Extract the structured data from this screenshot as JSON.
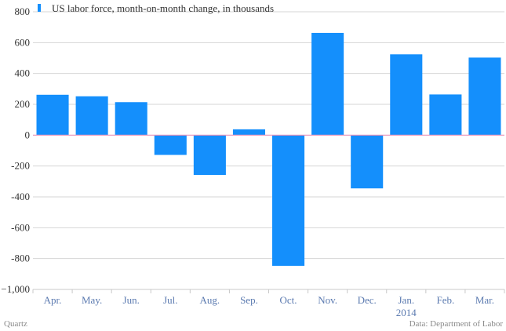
{
  "chart_data": {
    "type": "bar",
    "title": "",
    "xlabel": "",
    "ylabel": "",
    "ylim": [
      -1000,
      800
    ],
    "yticks": [
      800,
      600,
      400,
      200,
      0,
      -200,
      -400,
      -600,
      -800,
      -1000
    ],
    "ytick_labels": [
      "800",
      "600",
      "400",
      "200",
      "0",
      "-200",
      "-400",
      "-600",
      "-800",
      "−1,000"
    ],
    "categories": [
      "Apr.",
      "May.",
      "Jun.",
      "Jul.",
      "Aug.",
      "Sep.",
      "Oct.",
      "Nov.",
      "Dec.",
      "Jan.",
      "Feb.",
      "Mar."
    ],
    "year_label": {
      "category": "Jan.",
      "text": "2014"
    },
    "series": [
      {
        "name": "US labor force, month-on-month change, in thousands",
        "color": "#148ffc",
        "values": [
          262,
          252,
          214,
          -128,
          -258,
          38,
          -847,
          663,
          -345,
          524,
          264,
          503
        ]
      }
    ],
    "grid": true,
    "legend": "top-left",
    "zero_line_color": "#e893b9"
  },
  "footer": {
    "source_left": "Quartz",
    "source_right": "Data: Department of Labor"
  }
}
